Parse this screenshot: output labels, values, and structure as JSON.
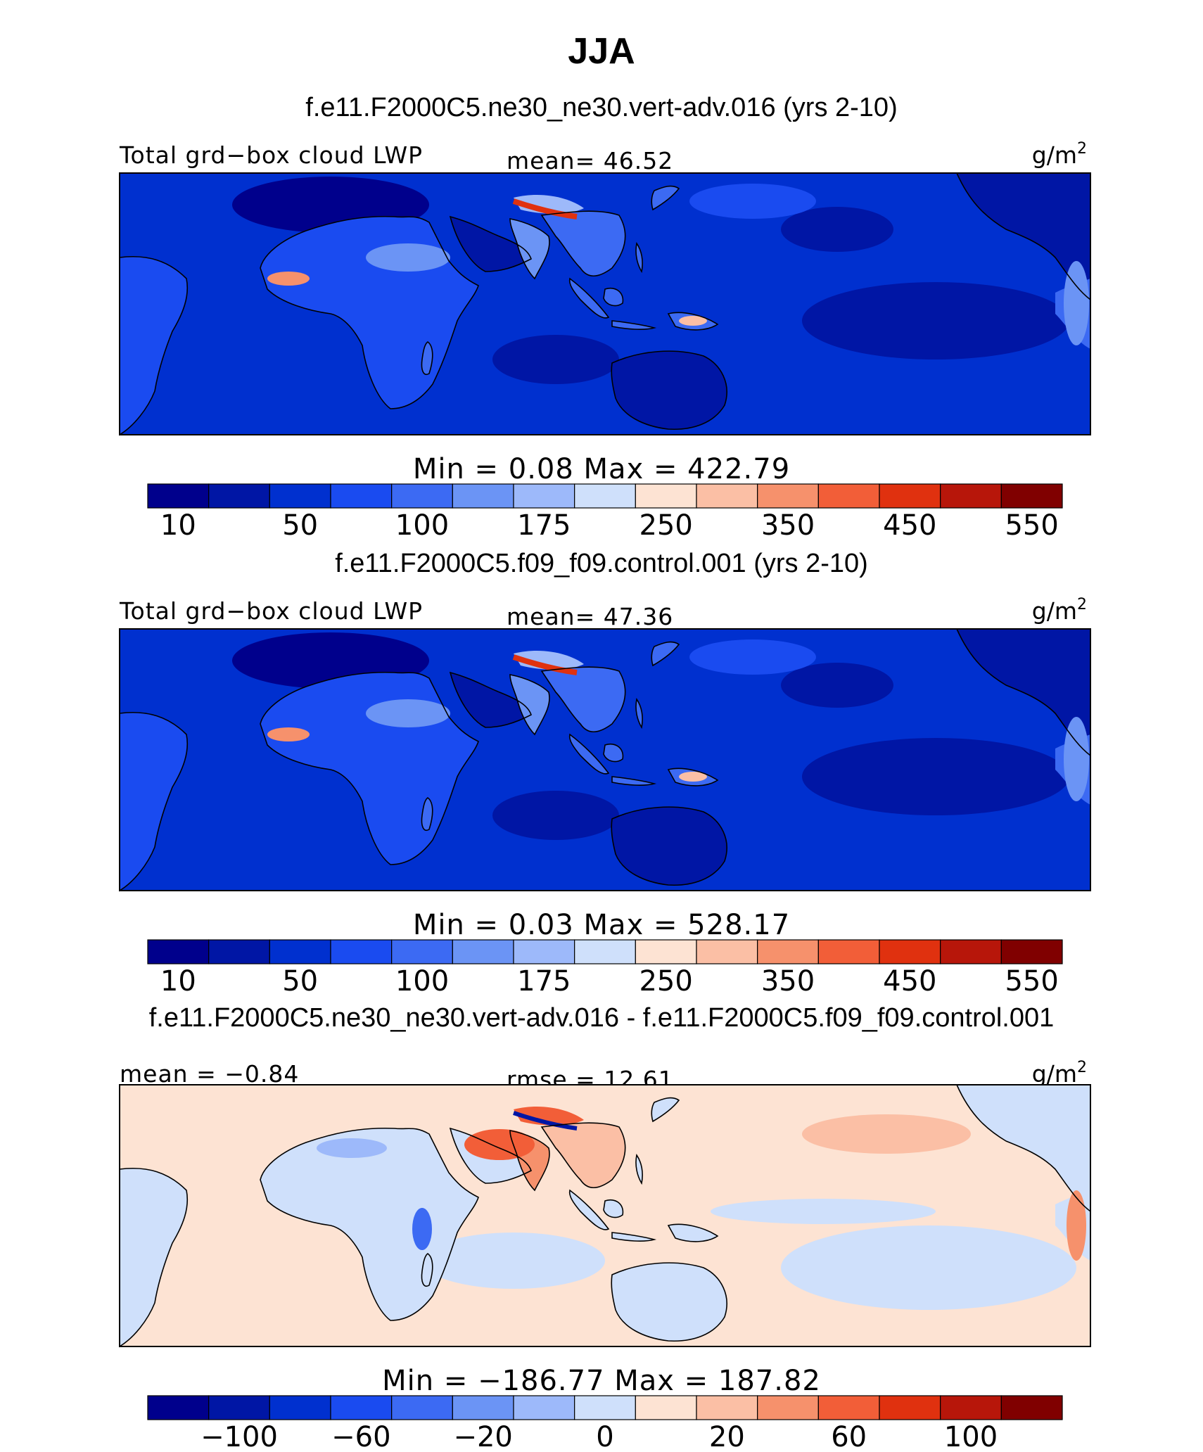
{
  "figure": {
    "title": "JJA",
    "bottom_title": "f.e11.F2000C5.ne30_ne30.vert-adv.016 - f.e11.F2000C5.f09_f09.control.001"
  },
  "colors": {
    "abs_scale": [
      "#00008c",
      "#0016a5",
      "#0030cf",
      "#1a4bf0",
      "#3c6af3",
      "#6b94f5",
      "#9db9fa",
      "#cfe0fb",
      "#fde3d3",
      "#fbbfa5",
      "#f6916c",
      "#f25e38",
      "#e0310f",
      "#b7160a",
      "#800000"
    ],
    "diff_scale": [
      "#00008c",
      "#0016a5",
      "#0030cf",
      "#1a4bf0",
      "#3c6af3",
      "#6b94f5",
      "#9db9fa",
      "#cfe0fb",
      "#fde3d3",
      "#fbbfa5",
      "#f6916c",
      "#f25e38",
      "#e0310f",
      "#b7160a",
      "#800000"
    ]
  },
  "panels": [
    {
      "case": "f.e11.F2000C5.ne30_ne30.vert-adv.016 (yrs 2-10)",
      "left_label": "Total grd−box cloud LWP",
      "center_label": "mean=   46.52",
      "unit": "g/m",
      "unit_exp": "2",
      "stats": "Min  =     0.08  Max  =  422.79",
      "cbar_ticks": [
        "10",
        "50",
        "100",
        "175",
        "250",
        "350",
        "450",
        "550"
      ]
    },
    {
      "case": "f.e11.F2000C5.f09_f09.control.001 (yrs 2-10)",
      "left_label": "Total grd−box cloud LWP",
      "center_label": "mean=   47.36",
      "unit": "g/m",
      "unit_exp": "2",
      "stats": "Min  =     0.03  Max  =  528.17",
      "cbar_ticks": [
        "10",
        "50",
        "100",
        "175",
        "250",
        "350",
        "450",
        "550"
      ]
    },
    {
      "case": "",
      "left_label": "mean  =   −0.84",
      "center_label": "rmse  =   12.61",
      "unit": "g/m",
      "unit_exp": "2",
      "stats": "Min  =  −186.77  Max  =  187.82",
      "cbar_ticks": [
        "−100",
        "−60",
        "−20",
        "0",
        "20",
        "60",
        "100"
      ]
    }
  ]
}
